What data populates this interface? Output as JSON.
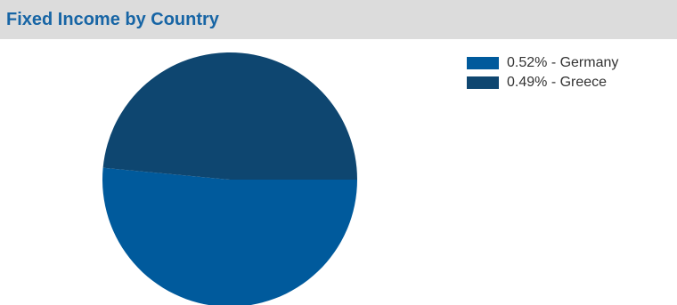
{
  "header": {
    "title": "Fixed Income by Country"
  },
  "colors": {
    "header_bg": "#dcdcdc",
    "title_text": "#1765a5"
  },
  "chart_data": {
    "type": "pie",
    "title": "Fixed Income by Country",
    "slices": [
      {
        "label": "0.52% - Germany",
        "name": "Germany",
        "value": 0.52,
        "color": "#005a9c"
      },
      {
        "label": "0.49% - Greece",
        "name": "Greece",
        "value": 0.49,
        "color": "#0e4670"
      }
    ],
    "start": "right horizontal, Germany drawn clockwise",
    "legend_position": "top-right"
  }
}
